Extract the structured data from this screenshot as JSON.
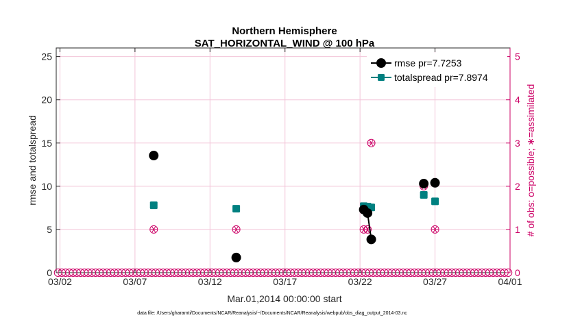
{
  "chart_data": {
    "type": "scatter",
    "title": "Northern Hemisphere",
    "subtitle": "SAT_HORIZONTAL_WIND @ 100 hPa",
    "xlabel": "Mar.01,2014 00:00:00 start",
    "ylabel": "rmse and totalspread",
    "ylabel_right": "# of obs: o=possible; ∗=assimilated",
    "footnote": "data file: /Users/gharamti/Documents/NCAR/Reanalysis/~/Documents/NCAR/Reanalysis/webpub/obs_diag_output_2014-03.nc",
    "x_unit": "days since 2014-03-01 00:00",
    "xlim": [
      0.75,
      31.0
    ],
    "ylim": [
      0,
      26
    ],
    "ylim_right": [
      0,
      5.2
    ],
    "x_ticks": [
      {
        "value": 1,
        "label": "03/02"
      },
      {
        "value": 6,
        "label": "03/07"
      },
      {
        "value": 11,
        "label": "03/12"
      },
      {
        "value": 16,
        "label": "03/17"
      },
      {
        "value": 21,
        "label": "03/22"
      },
      {
        "value": 26,
        "label": "03/27"
      },
      {
        "value": 31,
        "label": "04/01"
      }
    ],
    "y_ticks": [
      {
        "value": 0,
        "label": "0"
      },
      {
        "value": 5,
        "label": "5"
      },
      {
        "value": 10,
        "label": "10"
      },
      {
        "value": 15,
        "label": "15"
      },
      {
        "value": 20,
        "label": "20"
      },
      {
        "value": 25,
        "label": "25"
      }
    ],
    "y_ticks_right": [
      {
        "value": 0,
        "label": "0"
      },
      {
        "value": 1,
        "label": "1"
      },
      {
        "value": 2,
        "label": "2"
      },
      {
        "value": 3,
        "label": "3"
      },
      {
        "value": 4,
        "label": "4"
      },
      {
        "value": 5,
        "label": "5"
      }
    ],
    "colors": {
      "rmse": "#000000",
      "spread": "#008080",
      "obs": "#cc0066",
      "grid": "#f2c4d8"
    },
    "series": [
      {
        "name": "rmse",
        "legend": "rmse pr=7.7253",
        "marker": "circle",
        "color": "#000000",
        "points": [
          [
            7.25,
            13.55
          ],
          [
            12.75,
            1.75
          ],
          [
            21.25,
            7.3
          ],
          [
            21.5,
            6.9
          ],
          [
            21.75,
            3.85
          ],
          [
            25.25,
            10.3
          ],
          [
            26.0,
            10.4
          ]
        ],
        "segments": [
          [
            2,
            3,
            4
          ]
        ]
      },
      {
        "name": "totalspread",
        "legend": "totalspread pr=7.8974",
        "marker": "square",
        "color": "#008080",
        "points": [
          [
            7.25,
            7.8
          ],
          [
            12.75,
            7.4
          ],
          [
            21.25,
            7.7
          ],
          [
            21.5,
            7.65
          ],
          [
            21.75,
            7.55
          ],
          [
            25.25,
            9.0
          ],
          [
            26.0,
            8.25
          ]
        ],
        "segments": [
          [
            2,
            3,
            4
          ]
        ]
      }
    ],
    "obs_possible": {
      "step": 0.25,
      "start": 0.875,
      "end": 30.875,
      "nonzero": [
        [
          7.25,
          1
        ],
        [
          12.75,
          1
        ],
        [
          21.25,
          1
        ],
        [
          21.5,
          1
        ],
        [
          21.75,
          3
        ],
        [
          25.25,
          2
        ],
        [
          26.0,
          1
        ]
      ]
    }
  }
}
